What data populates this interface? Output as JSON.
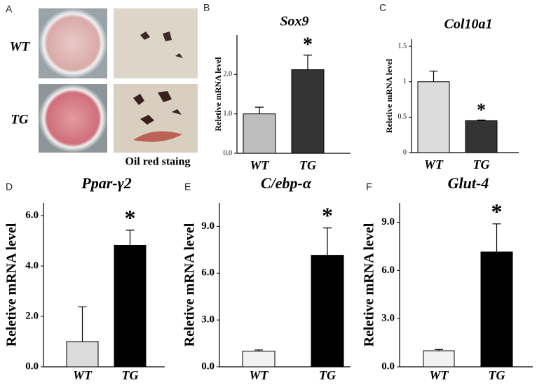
{
  "panel_a": {
    "label": "A",
    "rows": [
      "WT",
      "TG"
    ],
    "caption": "Oil red staing"
  },
  "chart_data": [
    {
      "type": "bar",
      "panel_label": "B",
      "title": "Sox9",
      "y_label": "Reletive mRNA level",
      "annotation": "*",
      "categories": [
        "WT",
        "TG"
      ],
      "values": [
        1.0,
        2.12
      ],
      "errors": [
        0.17,
        0.37
      ],
      "colors": [
        "#bdbdbd",
        "#333333"
      ],
      "ylim": [
        0,
        3.0
      ],
      "yticks": [
        {
          "value": 0,
          "label": "0.0"
        },
        {
          "value": 1,
          "label": "1.0"
        },
        {
          "value": 2,
          "label": "2.0"
        }
      ]
    },
    {
      "type": "bar",
      "panel_label": "C",
      "title": "Col10a1",
      "y_label": "Reletive mRNA level",
      "annotation": "*",
      "categories": [
        "WT",
        "TG"
      ],
      "values": [
        1.0,
        0.45
      ],
      "errors": [
        0.15,
        0.01
      ],
      "colors": [
        "#dcdcdc",
        "#333333"
      ],
      "ylim": [
        0,
        1.6
      ],
      "yticks": [
        0,
        0.5,
        1,
        1.5
      ]
    },
    {
      "type": "bar",
      "panel_label": "D",
      "title": "Ppar-γ2",
      "y_label": "Reletive mRNA level",
      "annotation": "*",
      "categories": [
        "WT",
        "TG"
      ],
      "values": [
        1.0,
        4.82
      ],
      "errors": [
        1.38,
        0.6
      ],
      "colors": [
        "#dcdcdc",
        "#000000"
      ],
      "ylim": [
        0,
        6.5
      ],
      "yticks": [
        {
          "value": 0,
          "label": "0.0"
        },
        {
          "value": 2,
          "label": "2.0"
        },
        {
          "value": 4,
          "label": "4.0"
        },
        {
          "value": 6,
          "label": "6.0"
        }
      ]
    },
    {
      "type": "bar",
      "panel_label": "E",
      "title": "C/ebp-α",
      "y_label": "Reletive mRNA level",
      "annotation": "*",
      "categories": [
        "WT",
        "TG"
      ],
      "values": [
        1.0,
        7.15
      ],
      "errors": [
        0.08,
        1.75
      ],
      "colors": [
        "#f2f2f2",
        "#000000"
      ],
      "ylim": [
        0,
        10.5
      ],
      "yticks": [
        {
          "value": 0,
          "label": "0.0"
        },
        {
          "value": 3,
          "label": "3.0"
        },
        {
          "value": 6,
          "label": "6.0"
        },
        {
          "value": 9,
          "label": "9.0"
        }
      ]
    },
    {
      "type": "bar",
      "panel_label": "F",
      "title": "Glut-4",
      "y_label": "Reletive mRNA level",
      "annotation": "*",
      "categories": [
        "WT",
        "TG"
      ],
      "values": [
        1.0,
        7.15
      ],
      "errors": [
        0.08,
        1.75
      ],
      "colors": [
        "#f2f2f2",
        "#000000"
      ],
      "ylim": [
        0,
        10.2
      ],
      "yticks": [
        {
          "value": 0,
          "label": "0.0"
        },
        {
          "value": 3,
          "label": "3.0"
        },
        {
          "value": 6,
          "label": "6.0"
        },
        {
          "value": 9,
          "label": "9.0"
        }
      ]
    }
  ]
}
